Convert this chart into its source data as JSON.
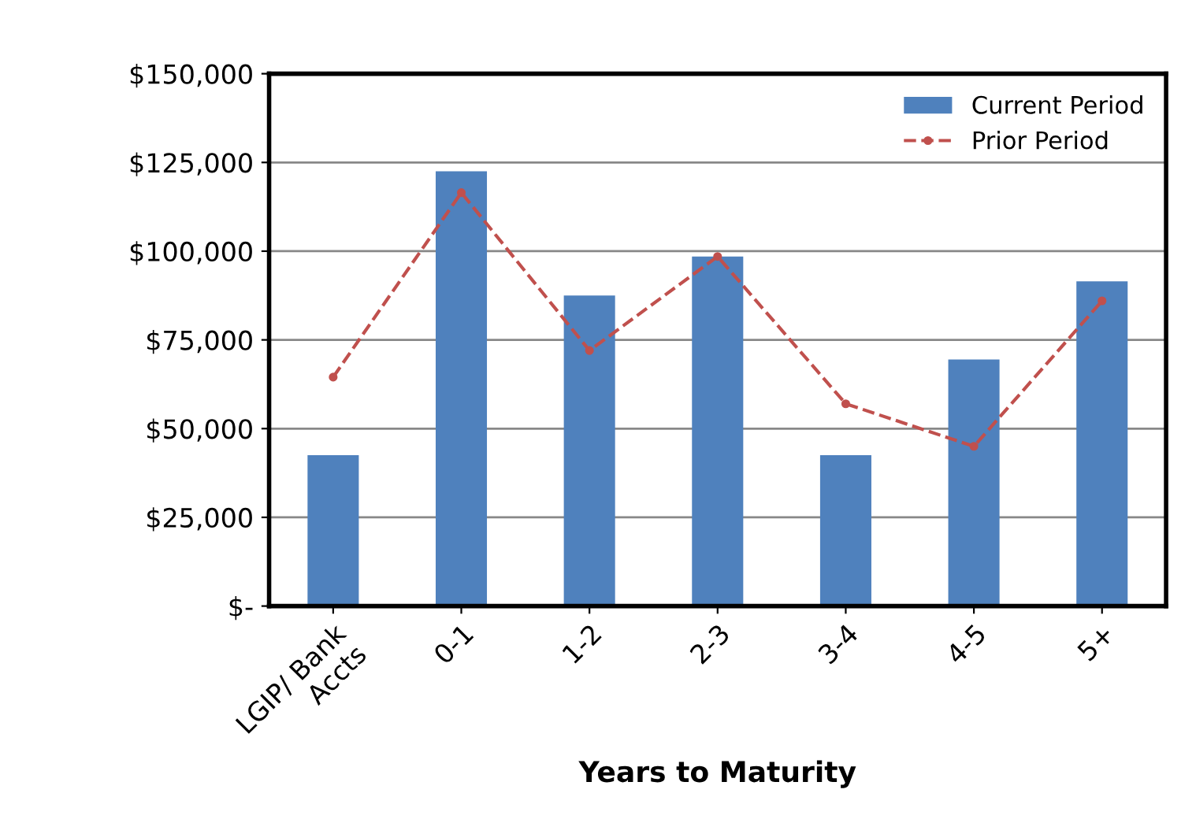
{
  "chart_data": {
    "type": "bar",
    "xlabel": "Years to Maturity",
    "categories": [
      "LGIP/ Bank\nAccts",
      "0-1",
      "1-2",
      "2-3",
      "3-4",
      "4-5",
      "5+"
    ],
    "series": [
      {
        "name": "Current Period",
        "color": "#4f81bd",
        "values": [
          42500,
          122500,
          87500,
          98500,
          42500,
          69500,
          91500
        ]
      },
      {
        "name": "Prior Period",
        "type": "line",
        "color": "#c0504d",
        "marker": "circle",
        "line_style": "dashed",
        "values": [
          64500,
          116500,
          72000,
          98500,
          57000,
          45000,
          86000
        ]
      }
    ],
    "ylim": [
      0,
      150000
    ],
    "yticks": [
      {
        "value": 0,
        "label": "$-"
      },
      {
        "value": 25000,
        "label": "$25,000"
      },
      {
        "value": 50000,
        "label": "$50,000"
      },
      {
        "value": 75000,
        "label": "$75,000"
      },
      {
        "value": 100000,
        "label": "$100,000"
      },
      {
        "value": 125000,
        "label": "$125,000"
      },
      {
        "value": 150000,
        "label": "$150,000"
      }
    ],
    "grid": "y",
    "legend": "top right"
  }
}
